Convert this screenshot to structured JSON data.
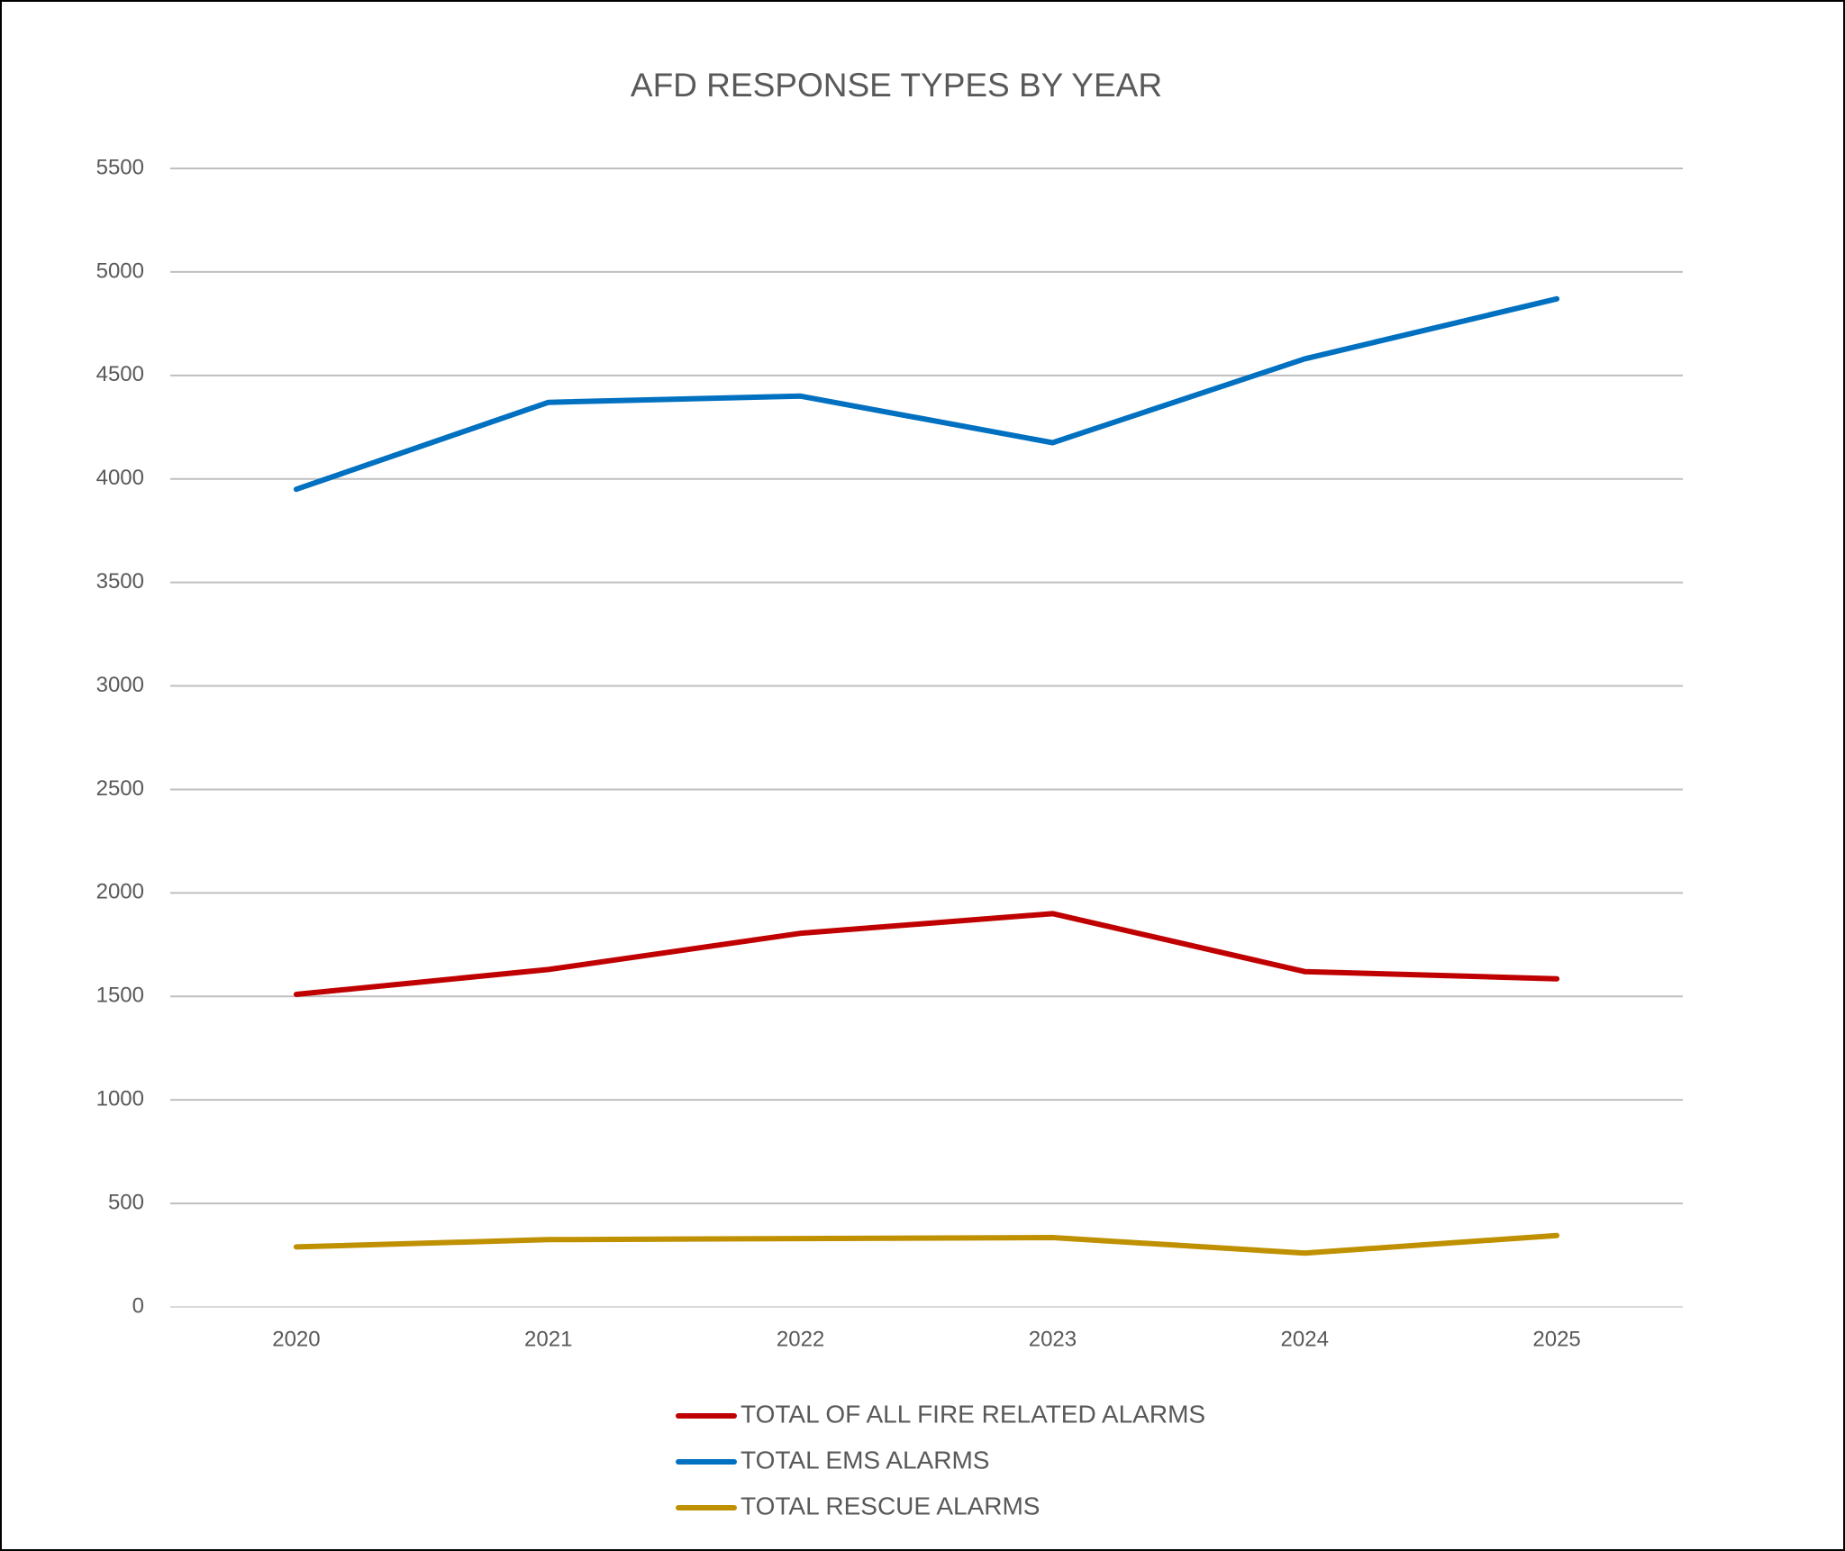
{
  "chart_data": {
    "type": "line",
    "title": "AFD RESPONSE TYPES BY YEAR",
    "categories": [
      "2020",
      "2021",
      "2022",
      "2023",
      "2024",
      "2025"
    ],
    "series": [
      {
        "name": "TOTAL OF ALL FIRE RELATED ALARMS",
        "color": "#c00000",
        "values": [
          1510,
          1630,
          1805,
          1900,
          1620,
          1585
        ]
      },
      {
        "name": "TOTAL EMS ALARMS",
        "color": "#0070c0",
        "values": [
          3950,
          4370,
          4400,
          4175,
          4580,
          4870
        ]
      },
      {
        "name": "TOTAL RESCUE ALARMS",
        "color": "#bf9000",
        "values": [
          290,
          325,
          330,
          335,
          260,
          345
        ]
      }
    ],
    "ylim": [
      0,
      5500
    ],
    "yticks": [
      0,
      500,
      1000,
      1500,
      2000,
      2500,
      3000,
      3500,
      4000,
      4500,
      5000,
      5500
    ],
    "grid": true,
    "legend": "bottom"
  }
}
